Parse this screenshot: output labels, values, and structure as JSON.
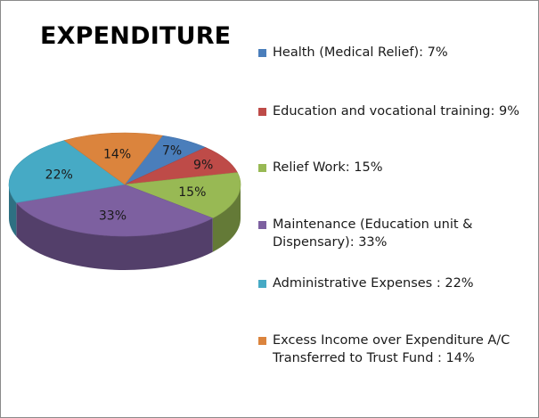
{
  "chart_data": {
    "type": "pie",
    "style": "3d",
    "title": "EXPENDITURE",
    "legend_position": "right",
    "slices": [
      {
        "label": "Health (Medical Relief): 7%",
        "value": 7,
        "data_label": "7%",
        "color": "#4A7EBB"
      },
      {
        "label": "Education and vocational training: 9%",
        "value": 9,
        "data_label": "9%",
        "color": "#BE4B48"
      },
      {
        "label": "Relief Work: 15%",
        "value": 15,
        "data_label": "15%",
        "color": "#98B954"
      },
      {
        "label": "Maintenance (Education unit & Dispensary): 33%",
        "value": 33,
        "data_label": "33%",
        "color": "#7D60A0"
      },
      {
        "label": "Administrative Expenses : 22%",
        "value": 22,
        "data_label": "22%",
        "color": "#46AAC5"
      },
      {
        "label": "Excess Income over Expenditure A/C Transferred to Trust Fund : 14%",
        "value": 14,
        "data_label": "14%",
        "color": "#DB843D"
      }
    ]
  }
}
